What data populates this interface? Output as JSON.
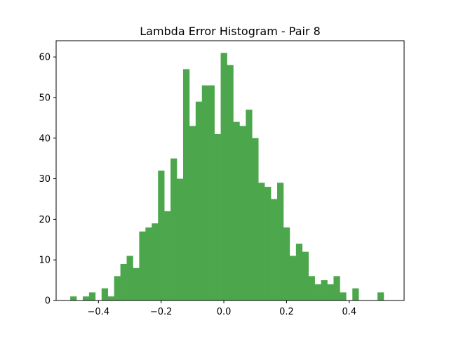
{
  "chart_data": {
    "type": "bar",
    "title": "Lambda Error Histogram - Pair 8",
    "xlabel": "",
    "ylabel": "",
    "xlim": [
      -0.535,
      0.575
    ],
    "ylim": [
      0,
      64
    ],
    "grid": false,
    "bin_start": -0.49,
    "bin_width": 0.02,
    "bar_color": "#4ca64c",
    "x_ticks": [
      {
        "value": -0.4,
        "label": "−0.4"
      },
      {
        "value": -0.2,
        "label": "−0.2"
      },
      {
        "value": 0.0,
        "label": "0.0"
      },
      {
        "value": 0.2,
        "label": "0.2"
      },
      {
        "value": 0.4,
        "label": "0.4"
      }
    ],
    "y_ticks": [
      {
        "value": 0,
        "label": "0"
      },
      {
        "value": 10,
        "label": "10"
      },
      {
        "value": 20,
        "label": "20"
      },
      {
        "value": 30,
        "label": "30"
      },
      {
        "value": 40,
        "label": "40"
      },
      {
        "value": 50,
        "label": "50"
      },
      {
        "value": 60,
        "label": "60"
      }
    ],
    "values": [
      1,
      0,
      1,
      2,
      0,
      3,
      1,
      6,
      9,
      11,
      8,
      17,
      18,
      19,
      32,
      22,
      35,
      30,
      57,
      43,
      49,
      53,
      53,
      41,
      61,
      58,
      44,
      43,
      47,
      40,
      29,
      28,
      25,
      29,
      18,
      11,
      14,
      12,
      6,
      4,
      5,
      4,
      6,
      2,
      0,
      3,
      0,
      0,
      0,
      2
    ]
  }
}
